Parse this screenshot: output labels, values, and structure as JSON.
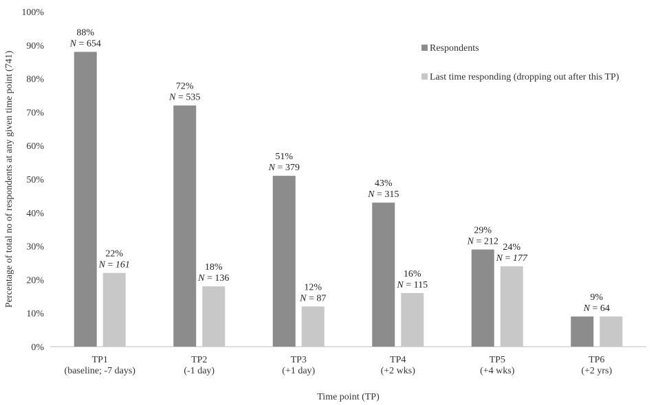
{
  "chart_data": {
    "type": "bar",
    "xlabel": "Time point (TP)",
    "ylabel": "Percentage of total no of respondents at any given time point (741)",
    "ylim": [
      0,
      100
    ],
    "yticks": [
      "0%",
      "10%",
      "20%",
      "30%",
      "40%",
      "50%",
      "60%",
      "70%",
      "80%",
      "90%",
      "100%"
    ],
    "grid": false,
    "legend_position": "top-right",
    "categories": [
      [
        "TP1",
        "(baseline; -7 days)"
      ],
      [
        "TP2",
        "(-1 day)"
      ],
      [
        "TP3",
        "(+1 day)"
      ],
      [
        "TP4",
        "(+2 wks)"
      ],
      [
        "TP5",
        "(+4 wks)"
      ],
      [
        "TP6",
        "(+2 yrs)"
      ]
    ],
    "series": [
      {
        "name": "Respondents",
        "color": "#8c8c8c",
        "values": [
          88,
          72,
          51,
          43,
          29,
          9
        ],
        "labels": [
          "88%",
          "72%",
          "51%",
          "43%",
          "29%",
          "9%"
        ],
        "n_labels": [
          "654",
          "535",
          "379",
          "315",
          "212",
          "64"
        ],
        "n_italic_value": [
          false,
          false,
          false,
          false,
          false,
          false
        ]
      },
      {
        "name": "Last time responding (dropping out after this TP)",
        "color": "#c8c8c8",
        "values": [
          22,
          18,
          12,
          16,
          24,
          9
        ],
        "labels": [
          "22%",
          "18%",
          "12%",
          "16%",
          "24%",
          ""
        ],
        "n_labels": [
          "161",
          "136",
          "87",
          "115",
          "177",
          ""
        ],
        "n_italic_value": [
          true,
          false,
          false,
          false,
          true,
          false
        ]
      }
    ],
    "n_prefix": "N",
    "n_equals": " = "
  }
}
